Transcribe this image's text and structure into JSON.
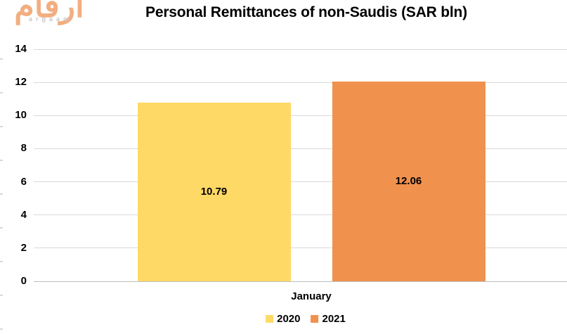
{
  "logo": {
    "arabic": "أرقام",
    "latin": "argaam"
  },
  "title": "Personal Remittances of non-Saudis (SAR bln)",
  "chart_data": {
    "type": "bar",
    "title": "Personal Remittances of non-Saudis (SAR bln)",
    "categories": [
      "January"
    ],
    "series": [
      {
        "name": "2020",
        "values": [
          10.79
        ],
        "color": "#FFD966"
      },
      {
        "name": "2021",
        "values": [
          12.06
        ],
        "color": "#F0914E"
      }
    ],
    "data_labels": [
      "10.79",
      "12.06"
    ],
    "ylim": [
      0,
      14
    ],
    "ytick_step": 2,
    "yticks": [
      0,
      2,
      4,
      6,
      8,
      10,
      12,
      14
    ],
    "grid": true,
    "legend_position": "bottom",
    "legend": [
      "2020",
      "2021"
    ],
    "xlabel": "",
    "ylabel": ""
  },
  "colors": {
    "background": "#FFFFFF",
    "gridline": "#D9D9D9",
    "axis_line": "#BFBFBF",
    "text": "#000000",
    "logo_orange": "#F2AE80",
    "logo_gray": "#C8C8C8"
  }
}
